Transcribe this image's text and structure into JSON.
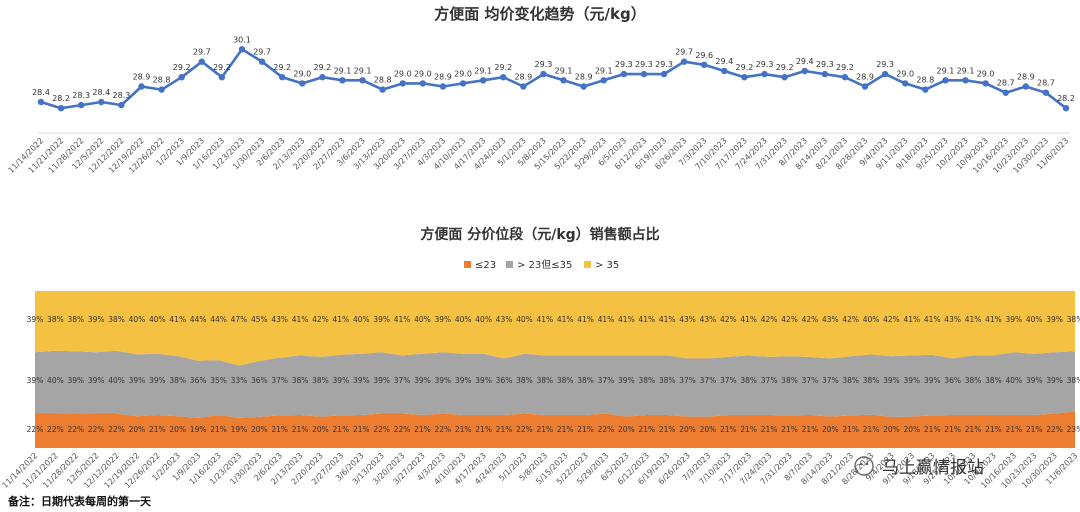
{
  "chart_data": [
    {
      "type": "line",
      "title": "方便面 均价变化趋势（元/kg）",
      "color": "#4472C4",
      "categories": [
        "11/14/2022",
        "11/21/2022",
        "11/28/2022",
        "12/5/2022",
        "12/12/2022",
        "12/19/2022",
        "12/26/2022",
        "1/2/2023",
        "1/9/2023",
        "1/16/2023",
        "1/23/2023",
        "1/30/2023",
        "2/6/2023",
        "2/13/2023",
        "2/20/2023",
        "2/27/2023",
        "3/6/2023",
        "3/13/2023",
        "3/20/2023",
        "3/27/2023",
        "4/3/2023",
        "4/10/2023",
        "4/17/2023",
        "4/24/2023",
        "5/1/2023",
        "5/8/2023",
        "5/15/2023",
        "5/22/2023",
        "5/29/2023",
        "6/5/2023",
        "6/12/2023",
        "6/19/2023",
        "6/26/2023",
        "7/3/2023",
        "7/10/2023",
        "7/17/2023",
        "7/24/2023",
        "7/31/2023",
        "8/7/2023",
        "8/14/2023",
        "8/21/2023",
        "8/28/2023",
        "9/4/2023",
        "9/11/2023",
        "9/18/2023",
        "9/25/2023",
        "10/2/2023",
        "10/9/2023",
        "10/16/2023",
        "10/23/2023",
        "10/30/2023",
        "11/6/2023"
      ],
      "values": [
        28.4,
        28.2,
        28.3,
        28.4,
        28.3,
        28.9,
        28.8,
        29.2,
        29.7,
        29.2,
        30.1,
        29.7,
        29.2,
        29.0,
        29.2,
        29.1,
        29.1,
        28.8,
        29.0,
        29.0,
        28.9,
        29.0,
        29.1,
        29.2,
        28.9,
        29.3,
        29.1,
        28.9,
        29.1,
        29.3,
        29.3,
        29.3,
        29.7,
        29.6,
        29.4,
        29.2,
        29.3,
        29.2,
        29.4,
        29.3,
        29.2,
        28.9,
        29.3,
        29.0,
        28.8,
        29.1,
        29.1,
        29.0,
        28.7,
        28.9,
        28.7,
        28.2
      ],
      "ylim": [
        27.4,
        30.4
      ]
    },
    {
      "type": "area",
      "stacked": true,
      "percent": true,
      "title": "方便面 分价位段（元/kg）销售额占比",
      "legend_position": "top",
      "categories": [
        "11/14/2022",
        "11/21/2022",
        "11/28/2022",
        "12/5/2022",
        "12/12/2022",
        "12/19/2022",
        "12/26/2022",
        "1/2/2023",
        "1/9/2023",
        "1/16/2023",
        "1/23/2023",
        "1/30/2023",
        "2/6/2023",
        "2/13/2023",
        "2/20/2023",
        "2/27/2023",
        "3/6/2023",
        "3/13/2023",
        "3/20/2023",
        "3/27/2023",
        "4/3/2023",
        "4/10/2023",
        "4/17/2023",
        "4/24/2023",
        "5/1/2023",
        "5/8/2023",
        "5/15/2023",
        "5/22/2023",
        "5/29/2023",
        "6/5/2023",
        "6/12/2023",
        "6/19/2023",
        "6/26/2023",
        "7/3/2023",
        "7/10/2023",
        "7/17/2023",
        "7/24/2023",
        "7/31/2023",
        "8/7/2023",
        "8/14/2023",
        "8/21/2023",
        "8/28/2023",
        "9/4/2023",
        "9/11/2023",
        "9/18/2023",
        "9/25/2023",
        "10/2/2023",
        "10/9/2023",
        "10/16/2023",
        "10/23/2023",
        "10/30/2023",
        "11/6/2023"
      ],
      "series": [
        {
          "name": "≤23",
          "color": "#ED7D31",
          "values": [
            22,
            22,
            22,
            22,
            22,
            20,
            21,
            20,
            19,
            21,
            19,
            20,
            21,
            21,
            20,
            21,
            21,
            22,
            22,
            21,
            22,
            21,
            21,
            21,
            22,
            21,
            21,
            21,
            22,
            20,
            21,
            21,
            20,
            20,
            21,
            21,
            21,
            21,
            21,
            20,
            21,
            21,
            20,
            20,
            21,
            21,
            21,
            21,
            21,
            21,
            22,
            23
          ]
        },
        {
          "name": "> 23但≤35",
          "color": "#A5A5A5",
          "values": [
            39,
            40,
            39,
            39,
            40,
            39,
            39,
            38,
            36,
            35,
            33,
            36,
            37,
            38,
            38,
            39,
            39,
            39,
            37,
            39,
            39,
            39,
            39,
            36,
            38,
            38,
            38,
            38,
            37,
            39,
            38,
            38,
            37,
            37,
            37,
            38,
            37,
            38,
            37,
            37,
            38,
            38,
            39,
            39,
            39,
            36,
            38,
            38,
            40,
            39,
            39,
            38
          ]
        },
        {
          "name": "> 35",
          "color": "#F4C142",
          "values": [
            39,
            38,
            38,
            39,
            38,
            40,
            40,
            41,
            44,
            44,
            47,
            45,
            43,
            41,
            42,
            41,
            40,
            39,
            41,
            40,
            39,
            40,
            40,
            43,
            40,
            41,
            41,
            41,
            41,
            41,
            41,
            41,
            43,
            43,
            42,
            41,
            42,
            42,
            42,
            43,
            42,
            40,
            42,
            41,
            41,
            43,
            41,
            41,
            39,
            40,
            39,
            38
          ]
        }
      ]
    }
  ],
  "footnote": "备注：日期代表每周的第一天",
  "watermark": "马上赢情报站"
}
